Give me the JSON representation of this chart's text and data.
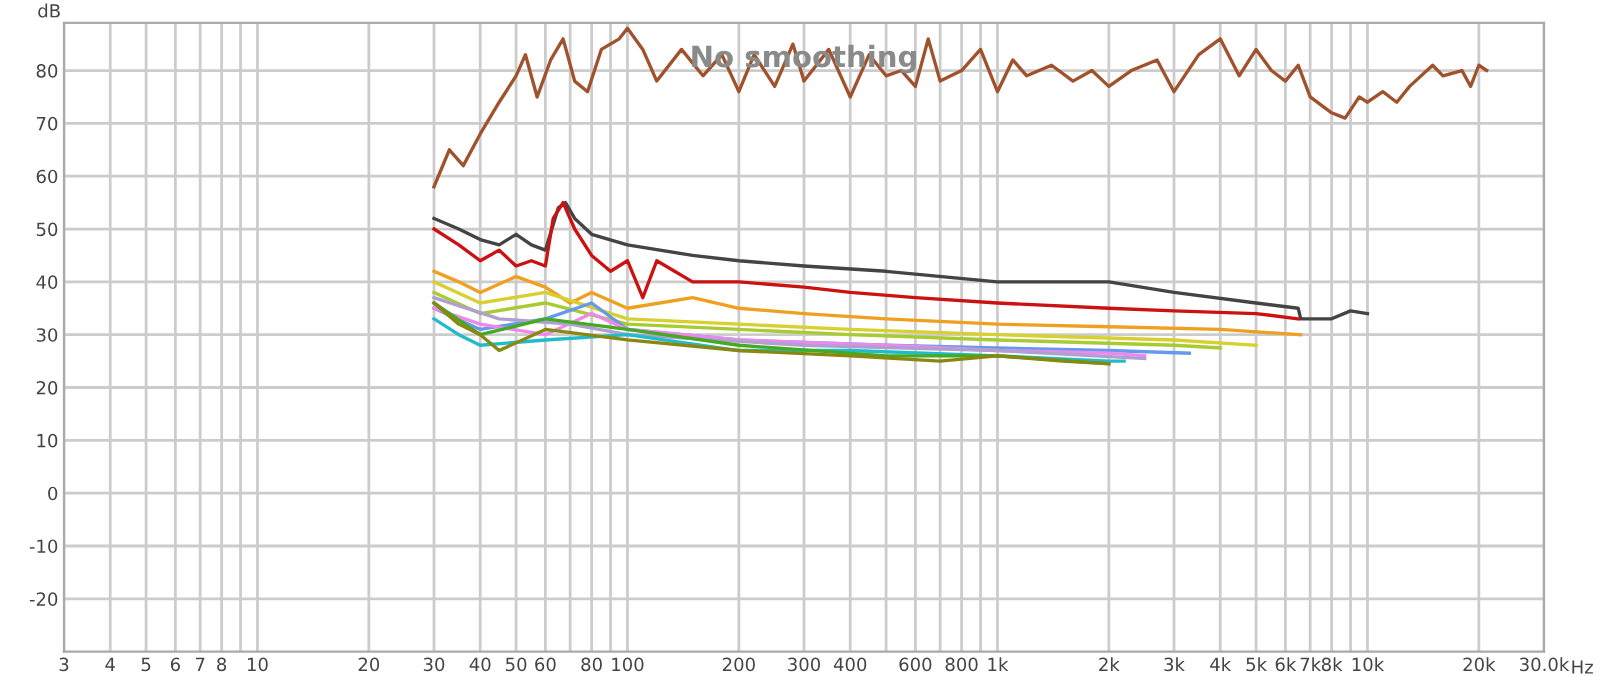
{
  "chart_data": {
    "type": "line",
    "title": "No smoothing",
    "xlabel": "Hz",
    "ylabel": "dB",
    "log": "x",
    "grid": true,
    "marker": "none",
    "line_style": "solid",
    "legend": false,
    "xlim": [
      3,
      30000
    ],
    "ylim": [
      -30,
      89
    ],
    "xticks": [
      3,
      4,
      5,
      6,
      7,
      8,
      {
        "value": 9,
        "label": null
      },
      10,
      20,
      30,
      40,
      50,
      60,
      {
        "value": 70,
        "label": null
      },
      80,
      {
        "value": 90,
        "label": null
      },
      100,
      200,
      300,
      400,
      {
        "value": 500,
        "label": null
      },
      600,
      {
        "value": 700,
        "label": null
      },
      800,
      {
        "value": 900,
        "label": null
      },
      {
        "value": 1000,
        "label": "1k"
      },
      {
        "value": 2000,
        "label": "2k"
      },
      {
        "value": 3000,
        "label": "3k"
      },
      {
        "value": 4000,
        "label": "4k"
      },
      {
        "value": 5000,
        "label": "5k"
      },
      {
        "value": 6000,
        "label": "6k"
      },
      {
        "value": 7000,
        "label": "7k"
      },
      {
        "value": 8000,
        "label": "8k"
      },
      {
        "value": 9000,
        "label": null
      },
      {
        "value": 10000,
        "label": "10k"
      },
      {
        "value": 20000,
        "label": "20k"
      },
      {
        "value": 30000,
        "label": "30.0k"
      }
    ],
    "yticks": [
      -20,
      -10,
      0,
      10,
      20,
      30,
      40,
      50,
      60,
      70,
      80
    ],
    "series": [
      {
        "color": "#a0522d",
        "x": [
          30,
          33,
          36,
          40,
          45,
          50,
          53,
          57,
          62,
          67,
          72,
          78,
          85,
          95,
          100,
          110,
          120,
          140,
          160,
          180,
          200,
          220,
          250,
          280,
          300,
          350,
          400,
          450,
          500,
          550,
          600,
          650,
          700,
          800,
          900,
          1000,
          1100,
          1200,
          1400,
          1600,
          1800,
          2000,
          2300,
          2700,
          3000,
          3500,
          4000,
          4500,
          5000,
          5500,
          6000,
          6500,
          7000,
          8000,
          8700,
          9500,
          10000,
          11000,
          12000,
          13000,
          15000,
          16000,
          18000,
          19000,
          20000,
          21000
        ],
        "values": [
          58,
          65,
          62,
          68,
          74,
          79,
          83,
          75,
          82,
          86,
          78,
          76,
          84,
          86,
          88,
          84,
          78,
          84,
          79,
          83,
          76,
          83,
          77,
          85,
          78,
          84,
          75,
          83,
          79,
          80,
          77,
          86,
          78,
          80,
          84,
          76,
          82,
          79,
          81,
          78,
          80,
          77,
          80,
          82,
          76,
          83,
          86,
          79,
          84,
          80,
          78,
          81,
          75,
          72,
          71,
          75,
          74,
          76,
          74,
          77,
          81,
          79,
          80,
          77,
          81,
          80
        ]
      },
      {
        "color": "#444444",
        "x": [
          30,
          35,
          40,
          45,
          50,
          55,
          60,
          65,
          68,
          72,
          80,
          100,
          150,
          200,
          300,
          500,
          1000,
          2000,
          3000,
          5000,
          6500,
          6600,
          8000,
          9000,
          10000
        ],
        "values": [
          52,
          50,
          48,
          47,
          49,
          47,
          46,
          54,
          55,
          52,
          49,
          47,
          45,
          44,
          43,
          42,
          40,
          40,
          38,
          36,
          35,
          33,
          33,
          34.5,
          34
        ]
      },
      {
        "color": "#cc1111",
        "x": [
          30,
          35,
          40,
          45,
          50,
          55,
          60,
          63,
          67,
          72,
          80,
          90,
          100,
          110,
          120,
          150,
          200,
          300,
          400,
          600,
          1000,
          2000,
          3000,
          5000,
          6500
        ],
        "values": [
          50,
          47,
          44,
          46,
          43,
          44,
          43,
          52,
          55,
          50,
          45,
          42,
          44,
          37,
          44,
          40,
          40,
          39,
          38,
          37,
          36,
          35,
          34.5,
          34,
          33
        ]
      },
      {
        "color": "#f0a020",
        "x": [
          30,
          35,
          40,
          50,
          60,
          70,
          80,
          100,
          150,
          200,
          300,
          500,
          1000,
          2000,
          4000,
          6600
        ],
        "values": [
          42,
          40,
          38,
          41,
          39,
          36,
          38,
          35,
          37,
          35,
          34,
          33,
          32,
          31.5,
          31,
          30
        ]
      },
      {
        "color": "#d8d030",
        "x": [
          30,
          40,
          60,
          100,
          200,
          400,
          1000,
          3000,
          5000
        ],
        "values": [
          40,
          36,
          38,
          33,
          32,
          31,
          30,
          29,
          28
        ]
      },
      {
        "color": "#a8cc30",
        "x": [
          30,
          40,
          60,
          100,
          200,
          400,
          1000,
          3000,
          4000
        ],
        "values": [
          38,
          34,
          36,
          32,
          31,
          30,
          29,
          28,
          27.5
        ]
      },
      {
        "color": "#6699ee",
        "x": [
          30,
          40,
          60,
          80,
          100,
          200,
          500,
          1000,
          2000,
          3300
        ],
        "values": [
          35,
          31,
          33,
          36,
          31,
          29,
          28,
          27.5,
          27,
          26.5
        ]
      },
      {
        "color": "#ee88ee",
        "x": [
          30,
          40,
          60,
          80,
          100,
          200,
          500,
          1000,
          2000,
          2500
        ],
        "values": [
          35,
          32,
          30,
          34,
          31,
          29,
          28,
          27,
          26.5,
          26
        ]
      },
      {
        "color": "#b0a0d0",
        "x": [
          30,
          45,
          70,
          100,
          300,
          1000,
          2500
        ],
        "values": [
          37,
          33,
          32,
          30,
          28,
          27,
          25.5
        ]
      },
      {
        "color": "#22bbcc",
        "x": [
          30,
          35,
          40,
          60,
          100,
          200,
          400,
          1000,
          2000,
          2200
        ],
        "values": [
          33,
          30,
          28,
          29,
          30,
          27,
          27,
          26,
          25,
          25
        ]
      },
      {
        "color": "#44aa22",
        "x": [
          30,
          40,
          60,
          100,
          200,
          500,
          1000,
          2000
        ],
        "values": [
          36,
          30,
          33,
          31,
          28,
          26,
          26,
          24.5
        ]
      },
      {
        "color": "#888810",
        "x": [
          30,
          35,
          40,
          45,
          60,
          100,
          200,
          400,
          700,
          1000,
          1500,
          2000
        ],
        "values": [
          36,
          32,
          30,
          27,
          31,
          29,
          27,
          26,
          25,
          26,
          25,
          24.5
        ]
      }
    ]
  }
}
